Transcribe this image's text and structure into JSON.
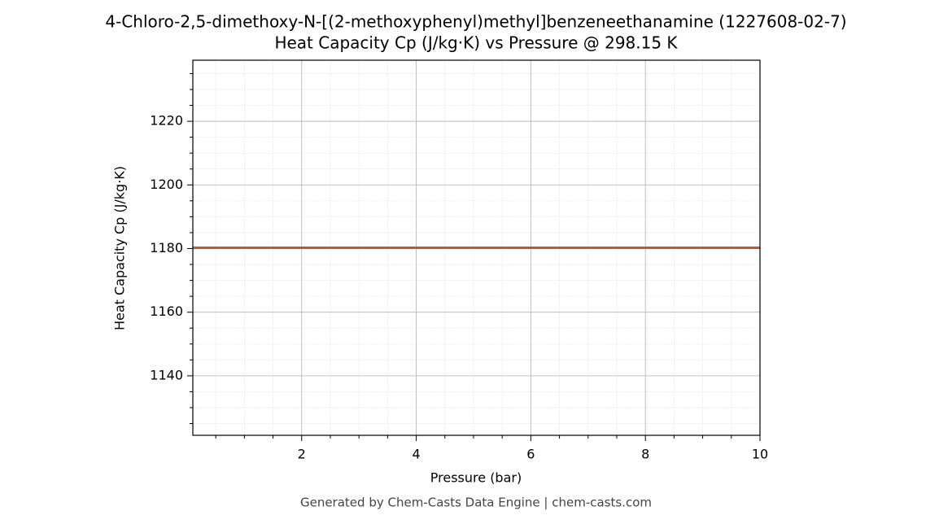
{
  "chart_data": {
    "type": "line",
    "title": "4-Chloro-2,5-dimethoxy-N-[(2-methoxyphenyl)methyl]benzeneethanamine (1227608-02-7)",
    "subtitle": "Heat Capacity Cp (J/kg·K) vs Pressure @ 298.15 K",
    "xlabel": "Pressure (bar)",
    "ylabel": "Heat Capacity Cp (J/kg·K)",
    "footer": "Generated by Chem-Casts Data Engine | chem-casts.com",
    "x": [
      0.1,
      10
    ],
    "series": [
      {
        "name": "Heat Capacity Cp",
        "color": "#c8552b",
        "values": [
          1180.25,
          1180.25
        ]
      }
    ],
    "xlim": [
      0.1,
      10
    ],
    "ylim": [
      1121.3,
      1239.2
    ],
    "xticks": [
      2,
      4,
      6,
      8,
      10
    ],
    "yticks": [
      1140,
      1160,
      1180,
      1200,
      1220
    ],
    "xminorticks": [
      0.5,
      1,
      1.5,
      2.5,
      3,
      3.5,
      4.5,
      5,
      5.5,
      6.5,
      7,
      7.5,
      8.5,
      9,
      9.5
    ],
    "yminorticks": [
      1125,
      1130,
      1135,
      1145,
      1150,
      1155,
      1165,
      1170,
      1175,
      1185,
      1190,
      1195,
      1205,
      1210,
      1215,
      1225,
      1230,
      1235
    ],
    "grid": true
  }
}
